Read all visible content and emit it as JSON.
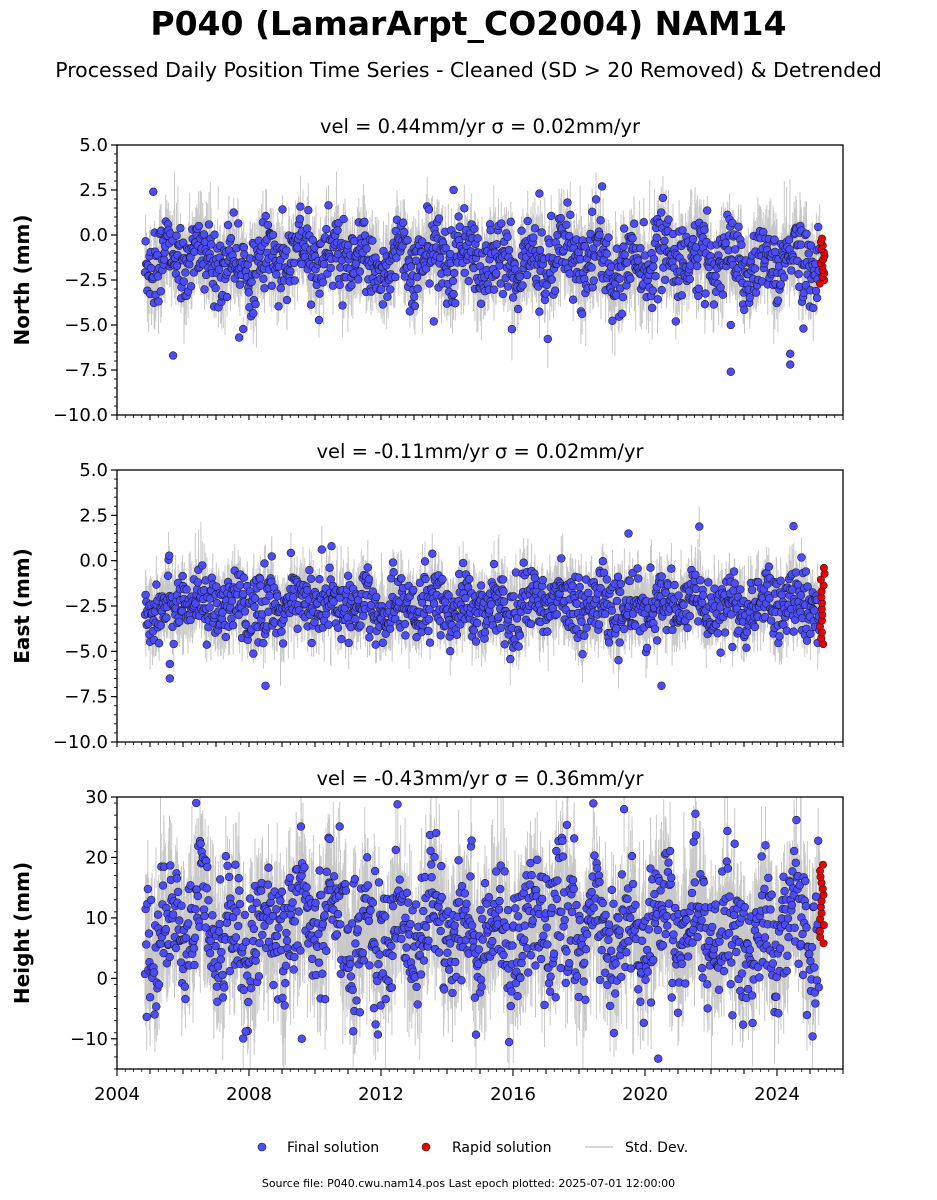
{
  "header": {
    "title": "P040 (LamarArpt_CO2004) NAM14",
    "subtitle": "Processed Daily Position Time Series - Cleaned (SD > 20 Removed) & Detrended"
  },
  "footer": {
    "source": "Source file: P040.cwu.nam14.pos  Last epoch plotted: 2025-07-01 12:00:00"
  },
  "legend": {
    "final": "Final solution",
    "rapid": "Rapid solution",
    "std": "Std. Dev."
  },
  "colors": {
    "final": "#4b4bff",
    "rapid": "#ee0000",
    "std": "#9a9a9a",
    "edge": "#1a1a1a"
  },
  "chart_data": [
    {
      "type": "scatter",
      "title": "vel = 0.44mm/yr   σ = 0.02mm/yr",
      "ylabel": "North (mm)",
      "xlim": [
        2004.0,
        2026.0
      ],
      "ylim": [
        -10.0,
        5.0
      ],
      "yticks": [
        5.0,
        2.5,
        0.0,
        -2.5,
        -5.0,
        -7.5,
        -10.0
      ],
      "ytick_labels": [
        "5.0",
        "2.5",
        "0.0",
        "−2.5",
        "−5.0",
        "−7.5",
        "−10.0"
      ],
      "series": [
        {
          "name": "Final solution",
          "mean": -1.4,
          "scatter": 1.05,
          "sd": 1.6,
          "amp": 0.6,
          "outliers": [
            [
              2005.7,
              -6.7
            ],
            [
              2007.7,
              -5.7
            ],
            [
              2013.6,
              -4.8
            ],
            [
              2022.6,
              -7.6
            ],
            [
              2022.6,
              -5.0
            ],
            [
              2024.4,
              -6.6
            ],
            [
              2024.4,
              -7.2
            ],
            [
              2024.8,
              -5.2
            ],
            [
              2005.1,
              2.4
            ],
            [
              2014.2,
              2.5
            ],
            [
              2018.7,
              2.7
            ],
            [
              2016.8,
              2.3
            ]
          ]
        },
        {
          "name": "Rapid solution",
          "x0": 2025.3,
          "x1": 2025.45,
          "y0": -2.7,
          "y1": -0.2
        }
      ]
    },
    {
      "type": "scatter",
      "title": "vel = -0.11mm/yr   σ = 0.02mm/yr",
      "ylabel": "East (mm)",
      "xlim": [
        2004.0,
        2026.0
      ],
      "ylim": [
        -10.0,
        5.0
      ],
      "yticks": [
        5.0,
        2.5,
        0.0,
        -2.5,
        -5.0,
        -7.5,
        -10.0
      ],
      "ytick_labels": [
        "5.0",
        "2.5",
        "0.0",
        "−2.5",
        "−5.0",
        "−7.5",
        "−10.0"
      ],
      "series": [
        {
          "name": "Final solution",
          "mean": -2.5,
          "scatter": 0.9,
          "sd": 1.4,
          "amp": 0.5,
          "outliers": [
            [
              2005.6,
              -6.5
            ],
            [
              2005.6,
              -5.7
            ],
            [
              2008.5,
              -6.9
            ],
            [
              2020.5,
              -6.9
            ],
            [
              2024.5,
              1.9
            ],
            [
              2019.5,
              1.5
            ],
            [
              2010.5,
              0.8
            ]
          ]
        },
        {
          "name": "Rapid solution",
          "x0": 2025.3,
          "x1": 2025.45,
          "y0": -4.6,
          "y1": -0.4
        }
      ]
    },
    {
      "type": "scatter",
      "title": "vel = -0.43mm/yr   σ = 0.36mm/yr",
      "ylabel": "Height (mm)",
      "xlim": [
        2004.0,
        2026.0
      ],
      "ylim": [
        -15.0,
        30.0
      ],
      "yticks": [
        30,
        20,
        10,
        0,
        -10
      ],
      "ytick_labels": [
        "30",
        "20",
        "10",
        "0",
        "−10"
      ],
      "xticks": [
        2004,
        2008,
        2012,
        2016,
        2020,
        2024
      ],
      "xtick_labels": [
        "2004",
        "2008",
        "2012",
        "2016",
        "2020",
        "2024"
      ],
      "series": [
        {
          "name": "Final solution",
          "mean": 8.0,
          "scatter": 5.5,
          "sd": 7.5,
          "amp": 4.0,
          "outliers": [
            [
              2006.4,
              29.0
            ],
            [
              2012.5,
              28.8
            ],
            [
              2009.6,
              -10.0
            ],
            [
              2020.4,
              -13.3
            ],
            [
              2007.9,
              -8.8
            ]
          ]
        },
        {
          "name": "Rapid solution",
          "x0": 2025.3,
          "x1": 2025.45,
          "y0": 5.8,
          "y1": 18.8
        }
      ]
    }
  ]
}
